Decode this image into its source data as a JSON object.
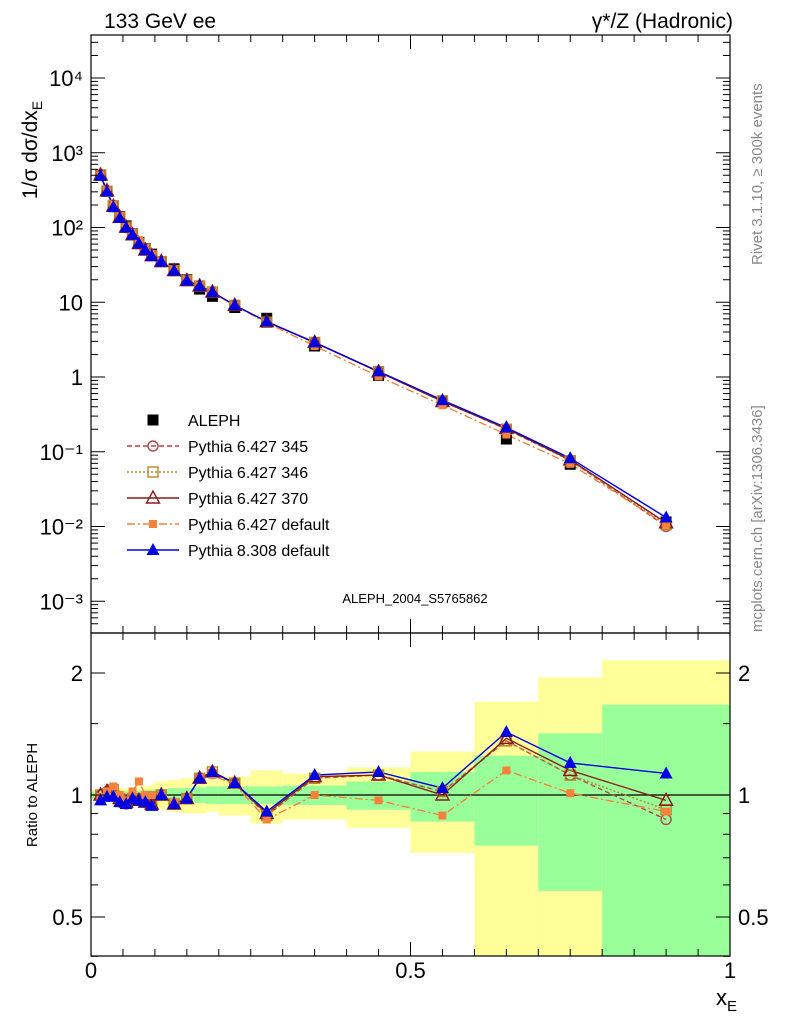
{
  "header": {
    "left": "133 GeV ee",
    "right": "γ*/Z (Hadronic)"
  },
  "side_labels": {
    "rivet": "Rivet 3.1.10, ≥ 300k events",
    "mcplots": "mcplots.cern.ch [arXiv:1306.3436]"
  },
  "analysis_id": "ALEPH_2004_S5765862",
  "axes": {
    "ylabel_top": "1/σ dσ/dx_E",
    "ylabel_bottom": "Ratio to ALEPH",
    "xlabel": "x_E"
  },
  "colors": {
    "band_outer": "#ffff99",
    "band_inner": "#99ff99",
    "ALEPH": "#000000",
    "P345": "#b2474c",
    "P346": "#b8862b",
    "P370": "#8b1a1a",
    "P6def": "#f5823c",
    "P8def": "#0000e0"
  },
  "chart_data": [
    {
      "type": "scatter",
      "title": "",
      "xlabel": "x_E",
      "ylabel": "1/σ dσ/dx_E",
      "xlim": [
        0,
        1
      ],
      "ylim": [
        0.00035,
        40000
      ],
      "yscale": "log",
      "x_ticks": [
        0,
        0.5,
        1
      ],
      "x_tick_labels": [
        "0",
        "0.5",
        "1"
      ],
      "y_tick_labels": [
        "10⁻³",
        "10⁻²",
        "10⁻¹",
        "1",
        "10",
        "10²",
        "10³",
        "10⁴"
      ],
      "legend": "bottom-left",
      "x": [
        0.015,
        0.025,
        0.035,
        0.045,
        0.055,
        0.065,
        0.075,
        0.085,
        0.095,
        0.11,
        0.13,
        0.15,
        0.17,
        0.19,
        0.225,
        0.275,
        0.35,
        0.45,
        0.55,
        0.65,
        0.75,
        0.9
      ],
      "series": [
        {
          "name": "ALEPH",
          "marker": "filled-square",
          "values": [
            505,
            305,
            190,
            140,
            105,
            82,
            63,
            52,
            44,
            35,
            28,
            20,
            15,
            12,
            8.5,
            6.1,
            2.6,
            1.05,
            0.47,
            0.148,
            0.068,
            0.0115
          ]
        },
        {
          "name": "Pythia 6.427 345",
          "marker": "open-circle",
          "line": "dashed",
          "values": [
            505,
            310,
            190,
            137,
            100,
            80,
            61,
            50,
            42,
            35,
            26.5,
            19.5,
            16.5,
            13.5,
            9.1,
            5.5,
            2.9,
            1.18,
            0.48,
            0.2,
            0.077,
            0.01
          ]
        },
        {
          "name": "Pythia 6.427 346",
          "marker": "open-square",
          "line": "dotted",
          "values": [
            505,
            305,
            195,
            137,
            101,
            80,
            61,
            51,
            42,
            35,
            26.5,
            19.5,
            16.5,
            13.7,
            9.1,
            5.4,
            2.9,
            1.18,
            0.48,
            0.2,
            0.076,
            0.0106
          ]
        },
        {
          "name": "Pythia 6.427 370",
          "marker": "open-triangle",
          "line": "solid",
          "values": [
            505,
            310,
            192,
            137,
            101,
            80,
            61,
            50,
            42,
            35,
            26.5,
            19.5,
            16.5,
            13.7,
            9.1,
            5.5,
            2.9,
            1.17,
            0.47,
            0.205,
            0.078,
            0.0112
          ]
        },
        {
          "name": "Pythia 6.427 default",
          "marker": "filled-square-small",
          "line": "dashdot",
          "values": [
            500,
            310,
            200,
            140,
            102,
            84,
            68,
            52,
            44,
            35,
            27,
            20,
            16.5,
            13.5,
            9.0,
            5.3,
            2.6,
            1.02,
            0.42,
            0.17,
            0.069,
            0.0105
          ]
        },
        {
          "name": "Pythia 8.308 default",
          "marker": "filled-triangle",
          "line": "solid",
          "values": [
            490,
            302,
            188,
            134,
            100,
            80,
            61,
            50,
            41.5,
            35,
            26.5,
            19.5,
            16.5,
            13.7,
            9.1,
            5.5,
            2.9,
            1.19,
            0.49,
            0.21,
            0.082,
            0.0132
          ]
        }
      ]
    },
    {
      "type": "scatter",
      "title": "",
      "xlabel": "x_E",
      "ylabel": "Ratio to ALEPH",
      "xlim": [
        0,
        1
      ],
      "ylim": [
        0.35,
        2.3
      ],
      "y_ticks": [
        0.5,
        1,
        2
      ],
      "y_tick_labels": [
        "0.5",
        "1",
        "2"
      ],
      "reference_line": 1,
      "bands": {
        "edges": [
          0,
          0.01,
          0.02,
          0.03,
          0.04,
          0.05,
          0.06,
          0.07,
          0.08,
          0.09,
          0.1,
          0.12,
          0.14,
          0.16,
          0.18,
          0.2,
          0.25,
          0.3,
          0.4,
          0.5,
          0.6,
          0.7,
          0.8,
          1.0
        ],
        "inner_half_width": [
          0.02,
          0.02,
          0.02,
          0.02,
          0.02,
          0.02,
          0.025,
          0.025,
          0.03,
          0.03,
          0.035,
          0.04,
          0.04,
          0.045,
          0.05,
          0.05,
          0.05,
          0.055,
          0.08,
          0.14,
          0.25,
          0.42,
          0.67
        ],
        "outer_half_width": [
          0.03,
          0.03,
          0.03,
          0.03,
          0.04,
          0.04,
          0.045,
          0.045,
          0.05,
          0.06,
          0.08,
          0.09,
          0.1,
          0.1,
          0.09,
          0.11,
          0.15,
          0.13,
          0.17,
          0.28,
          0.7,
          0.95,
          1.15
        ]
      },
      "x": [
        0.015,
        0.025,
        0.035,
        0.045,
        0.055,
        0.065,
        0.075,
        0.085,
        0.095,
        0.11,
        0.13,
        0.15,
        0.17,
        0.19,
        0.225,
        0.275,
        0.35,
        0.45,
        0.55,
        0.65,
        0.75,
        0.9
      ],
      "series": [
        {
          "name": "Pythia 6.427 345",
          "values": [
            1.0,
            1.02,
            1.0,
            0.98,
            0.95,
            0.98,
            0.97,
            0.96,
            0.95,
            1.0,
            0.95,
            0.98,
            1.1,
            1.13,
            1.07,
            0.89,
            1.1,
            1.12,
            1.02,
            1.36,
            1.12,
            0.87
          ]
        },
        {
          "name": "Pythia 6.427 346",
          "values": [
            1.0,
            1.0,
            1.03,
            0.98,
            0.96,
            0.98,
            0.97,
            0.98,
            0.95,
            1.0,
            0.95,
            0.98,
            1.1,
            1.14,
            1.07,
            0.89,
            1.1,
            1.12,
            1.02,
            1.36,
            1.12,
            0.92
          ]
        },
        {
          "name": "Pythia 6.427 370",
          "values": [
            1.0,
            1.02,
            1.01,
            0.98,
            0.96,
            0.98,
            0.97,
            0.96,
            0.95,
            1.0,
            0.95,
            0.98,
            1.1,
            1.14,
            1.07,
            0.9,
            1.11,
            1.12,
            1.0,
            1.38,
            1.15,
            0.97
          ]
        },
        {
          "name": "Pythia 6.427 default",
          "values": [
            0.99,
            1.02,
            1.05,
            1.0,
            0.97,
            1.02,
            1.08,
            1.0,
            1.0,
            1.0,
            0.96,
            0.98,
            1.1,
            1.12,
            1.06,
            0.87,
            1.0,
            0.97,
            0.89,
            1.15,
            1.01,
            0.91
          ]
        },
        {
          "name": "Pythia 8.308 default",
          "values": [
            0.97,
            0.99,
            0.99,
            0.96,
            0.95,
            0.98,
            0.97,
            0.96,
            0.94,
            1.0,
            0.95,
            0.98,
            1.1,
            1.14,
            1.07,
            0.91,
            1.12,
            1.14,
            1.04,
            1.43,
            1.2,
            1.13
          ]
        }
      ]
    }
  ]
}
